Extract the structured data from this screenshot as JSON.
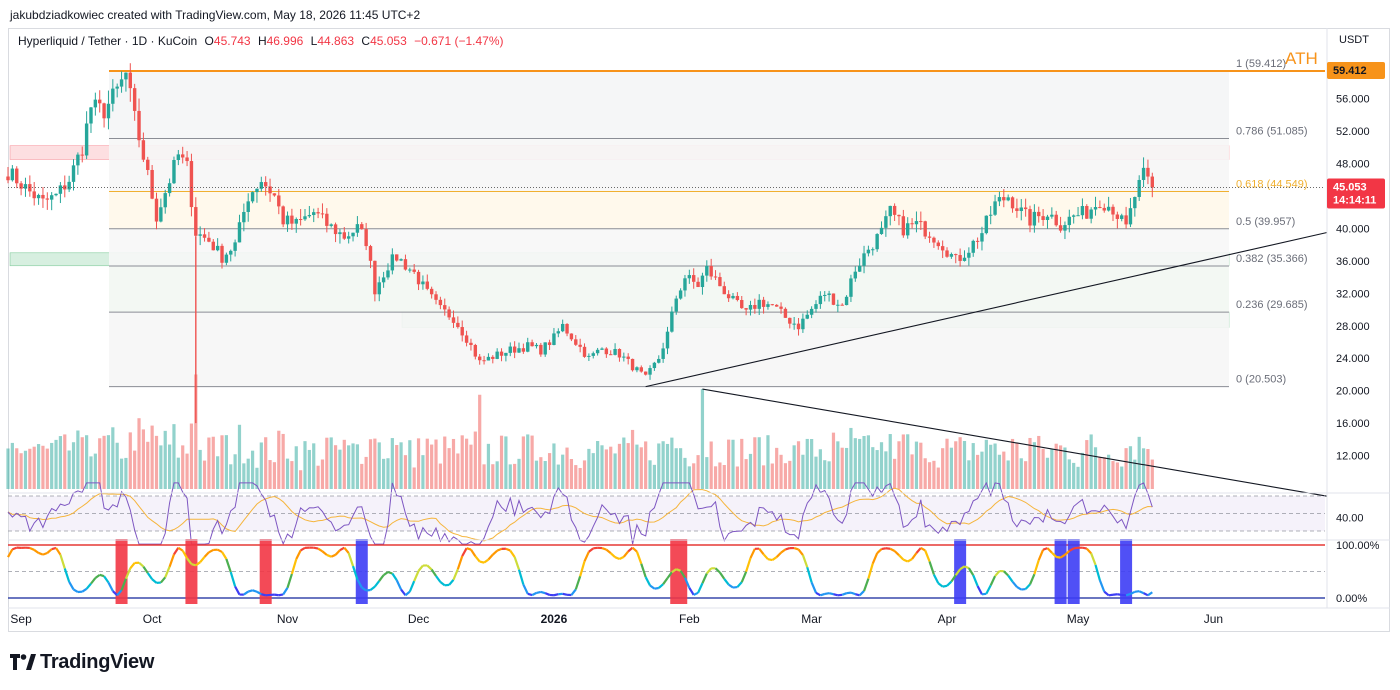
{
  "header": {
    "credit": "jakubdziadkowiec created with TradingView.com, May 18, 2026 11:45 UTC+2",
    "symbol": "Hyperliquid / Tether · 1D · KuCoin",
    "open_label": "O",
    "open": "45.743",
    "high_label": "H",
    "high": "46.996",
    "low_label": "L",
    "low": "44.863",
    "close_label": "C",
    "close": "45.053",
    "change": "−0.671 (−1.47%)",
    "currency": "USDT"
  },
  "footer": {
    "brand": "TradingView"
  },
  "colors": {
    "up": "#26a69a",
    "down": "#ef5350",
    "ath": "#f7931a",
    "fib618": "#f0b030",
    "rsi": "#7e57c2"
  },
  "chart_data": {
    "type": "candlestick",
    "x_ticks": [
      {
        "label": "Sep",
        "date": "2025-09-01"
      },
      {
        "label": "Oct",
        "date": "2025-10-01"
      },
      {
        "label": "Nov",
        "date": "2025-11-01"
      },
      {
        "label": "Dec",
        "date": "2025-12-01"
      },
      {
        "label": "2026",
        "date": "2026-01-01"
      },
      {
        "label": "Feb",
        "date": "2026-02-01"
      },
      {
        "label": "Mar",
        "date": "2026-03-01"
      },
      {
        "label": "Apr",
        "date": "2026-04-01"
      },
      {
        "label": "May",
        "date": "2026-05-01"
      },
      {
        "label": "Jun",
        "date": "2026-06-01"
      }
    ],
    "x_range": [
      "2025-08-29",
      "2026-06-27"
    ],
    "y_ticks": [
      "20.000",
      "24.000",
      "28.000",
      "32.000",
      "36.000",
      "40.000",
      "44.000",
      "48.000",
      "52.000",
      "56.000",
      "60.000",
      "12.000",
      "16.000"
    ],
    "y_range": [
      6.0,
      64.7
    ],
    "price_anchors": [
      [
        "2025-08-29",
        47.0
      ],
      [
        "2025-09-03",
        44.5
      ],
      [
        "2025-09-06",
        43.2
      ],
      [
        "2025-09-09",
        44.0
      ],
      [
        "2025-09-12",
        46.0
      ],
      [
        "2025-09-15",
        50.0
      ],
      [
        "2025-09-17",
        55.0
      ],
      [
        "2025-09-20",
        54.5
      ],
      [
        "2025-09-23",
        57.0
      ],
      [
        "2025-09-25",
        59.0
      ],
      [
        "2025-09-27",
        53.5
      ],
      [
        "2025-09-30",
        46.5
      ],
      [
        "2025-10-02",
        41.5
      ],
      [
        "2025-10-05",
        46.0
      ],
      [
        "2025-10-07",
        49.0
      ],
      [
        "2025-10-09",
        47.5
      ],
      [
        "2025-10-11",
        39.5
      ],
      [
        "2025-10-14",
        38.5
      ],
      [
        "2025-10-17",
        36.5
      ],
      [
        "2025-10-20",
        38.0
      ],
      [
        "2025-10-23",
        44.0
      ],
      [
        "2025-10-26",
        46.0
      ],
      [
        "2025-10-29",
        44.0
      ],
      [
        "2025-10-31",
        41.0
      ],
      [
        "2025-11-03",
        40.5
      ],
      [
        "2025-11-07",
        42.0
      ],
      [
        "2025-11-10",
        40.5
      ],
      [
        "2025-11-14",
        39.0
      ],
      [
        "2025-11-17",
        40.0
      ],
      [
        "2025-11-19",
        38.5
      ],
      [
        "2025-11-21",
        32.5
      ],
      [
        "2025-11-24",
        35.5
      ],
      [
        "2025-11-26",
        36.5
      ],
      [
        "2025-11-30",
        34.5
      ],
      [
        "2025-12-03",
        32.0
      ],
      [
        "2025-12-06",
        30.0
      ],
      [
        "2025-12-09",
        29.0
      ],
      [
        "2025-12-12",
        26.5
      ],
      [
        "2025-12-15",
        23.5
      ],
      [
        "2025-12-18",
        24.2
      ],
      [
        "2025-12-22",
        25.0
      ],
      [
        "2025-12-26",
        25.5
      ],
      [
        "2025-12-29",
        25.0
      ],
      [
        "2026-01-01",
        26.5
      ],
      [
        "2026-01-03",
        28.0
      ],
      [
        "2026-01-06",
        26.0
      ],
      [
        "2026-01-09",
        24.0
      ],
      [
        "2026-01-12",
        25.2
      ],
      [
        "2026-01-16",
        24.5
      ],
      [
        "2026-01-19",
        23.0
      ],
      [
        "2026-01-22",
        21.5
      ],
      [
        "2026-01-25",
        24.0
      ],
      [
        "2026-01-27",
        27.0
      ],
      [
        "2026-01-29",
        31.5
      ],
      [
        "2026-01-31",
        34.0
      ],
      [
        "2026-02-03",
        33.0
      ],
      [
        "2026-02-05",
        35.0
      ],
      [
        "2026-02-08",
        33.0
      ],
      [
        "2026-02-11",
        31.0
      ],
      [
        "2026-02-14",
        29.5
      ],
      [
        "2026-02-17",
        31.0
      ],
      [
        "2026-02-20",
        30.5
      ],
      [
        "2026-02-23",
        29.0
      ],
      [
        "2026-02-26",
        28.0
      ],
      [
        "2026-03-01",
        30.0
      ],
      [
        "2026-03-04",
        32.0
      ],
      [
        "2026-03-08",
        30.5
      ],
      [
        "2026-03-11",
        35.0
      ],
      [
        "2026-03-14",
        37.5
      ],
      [
        "2026-03-17",
        39.5
      ],
      [
        "2026-03-19",
        42.0
      ],
      [
        "2026-03-22",
        40.0
      ],
      [
        "2026-03-25",
        40.5
      ],
      [
        "2026-03-28",
        39.5
      ],
      [
        "2026-03-31",
        38.0
      ],
      [
        "2026-04-03",
        36.0
      ],
      [
        "2026-04-06",
        37.5
      ],
      [
        "2026-04-09",
        39.5
      ],
      [
        "2026-04-12",
        43.0
      ],
      [
        "2026-04-15",
        44.0
      ],
      [
        "2026-04-18",
        42.0
      ],
      [
        "2026-04-20",
        41.0
      ],
      [
        "2026-04-24",
        42.0
      ],
      [
        "2026-04-27",
        40.5
      ],
      [
        "2026-04-30",
        41.5
      ],
      [
        "2026-05-03",
        42.0
      ],
      [
        "2026-05-06",
        43.5
      ],
      [
        "2026-05-09",
        42.5
      ],
      [
        "2026-05-12",
        40.0
      ],
      [
        "2026-05-14",
        44.0
      ],
      [
        "2026-05-16",
        46.5
      ],
      [
        "2026-05-18",
        45.053
      ]
    ],
    "fib_levels": [
      {
        "ratio": "1",
        "label": "1 (59.412)",
        "price": 59.412
      },
      {
        "ratio": "0.786",
        "label": "0.786 (51.085)",
        "price": 51.085
      },
      {
        "ratio": "0.618",
        "label": "0.618 (44.549)",
        "price": 44.549
      },
      {
        "ratio": "0.5",
        "label": "0.5 (39.957)",
        "price": 39.957
      },
      {
        "ratio": "0.382",
        "label": "0.382 (35.366)",
        "price": 35.366
      },
      {
        "ratio": "0.236",
        "label": "0.236 (29.685)",
        "price": 29.685
      },
      {
        "ratio": "0",
        "label": "0 (20.503)",
        "price": 20.503
      }
    ],
    "ath": {
      "label": "ATH",
      "price_label": "59.412",
      "price": 59.412
    },
    "last_price": {
      "value": "45.053",
      "countdown": "14:14:11",
      "price": 45.053
    },
    "zones": [
      {
        "kind": "resistance",
        "from": 48.5,
        "to": 50.2
      },
      {
        "kind": "support",
        "from": 35.4,
        "to": 37.0
      },
      {
        "kind": "support",
        "from": 27.8,
        "to": 29.7
      }
    ],
    "trendlines": [
      {
        "name": "ascending",
        "from": [
          "2026-01-22",
          20.5
        ],
        "to": [
          "2026-06-27",
          39.5
        ]
      },
      {
        "name": "volume-descending",
        "from": [
          "2026-02-04",
          20.2
        ],
        "to": [
          "2026-06-27",
          7.0
        ]
      }
    ],
    "volume_spikes": [
      [
        "2025-10-11",
        22.0
      ],
      [
        "2026-02-04",
        20.2
      ],
      [
        "2025-12-15",
        19.5
      ]
    ],
    "rsi": {
      "tick": "40.00",
      "bands": [
        70,
        30
      ]
    },
    "oscillator": {
      "ticks": [
        "100.00%",
        "0.00%"
      ]
    }
  }
}
